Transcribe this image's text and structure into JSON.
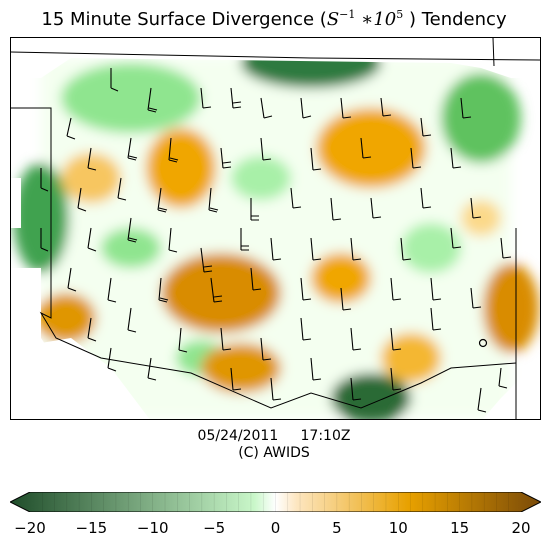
{
  "title": {
    "prefix": "15 Minute Surface Divergence (",
    "math_base": "S",
    "math_exp1": "−1",
    "math_mid": " ∗10",
    "math_exp2": "5",
    "suffix": " ) Tendency"
  },
  "timestamp": {
    "date": "05/24/2011",
    "time": "17:10Z"
  },
  "credit": "(C) AWIDS",
  "colorbar": {
    "min": -20,
    "max": 20,
    "ticks": [
      "−20",
      "−15",
      "−10",
      "−5",
      "0",
      "5",
      "10",
      "15",
      "20"
    ],
    "negative_dark": "#1f4d2a",
    "negative_light": "#c9f7c9",
    "positive_light": "#fde6c0",
    "positive_mid": "#e8a100",
    "positive_dark": "#7a4a08",
    "neutral": "#ffffff"
  }
}
